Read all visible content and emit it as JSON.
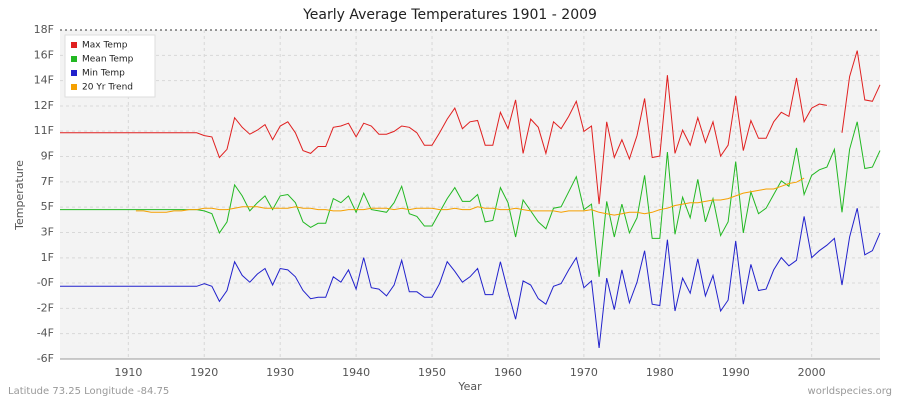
{
  "chart_data": {
    "type": "line",
    "title": "Yearly Average Temperatures 1901 - 2009",
    "x_label": "Year",
    "y_label": "Temperature",
    "footer_left": "Latitude 73.25 Longitude -84.75",
    "footer_right": "worldspecies.org",
    "grid": true,
    "legend_position": "top-left",
    "xlim": [
      1901,
      2009
    ],
    "xticks": [
      1910,
      1920,
      1930,
      1940,
      1950,
      1960,
      1970,
      1980,
      1990,
      2000
    ],
    "ylim": [
      -6,
      18
    ],
    "yticks": [
      {
        "value": -6,
        "label": "-6F"
      },
      {
        "value": -4.15,
        "label": "-4F"
      },
      {
        "value": -2.31,
        "label": "-2F"
      },
      {
        "value": -0.46,
        "label": "-0F"
      },
      {
        "value": 1.38,
        "label": "1F"
      },
      {
        "value": 3.23,
        "label": "3F"
      },
      {
        "value": 5.08,
        "label": "5F"
      },
      {
        "value": 6.92,
        "label": "7F"
      },
      {
        "value": 8.77,
        "label": "9F"
      },
      {
        "value": 10.62,
        "label": "11F"
      },
      {
        "value": 12.46,
        "label": "12F"
      },
      {
        "value": 14.31,
        "label": "14F"
      },
      {
        "value": 16.15,
        "label": "16F"
      },
      {
        "value": 18,
        "label": "18F"
      }
    ],
    "x": [
      1901,
      1902,
      1903,
      1904,
      1905,
      1906,
      1907,
      1908,
      1909,
      1910,
      1911,
      1912,
      1913,
      1914,
      1915,
      1916,
      1917,
      1918,
      1919,
      1920,
      1921,
      1922,
      1923,
      1924,
      1925,
      1926,
      1927,
      1928,
      1929,
      1930,
      1931,
      1932,
      1933,
      1934,
      1935,
      1936,
      1937,
      1938,
      1939,
      1940,
      1941,
      1942,
      1943,
      1944,
      1945,
      1946,
      1947,
      1948,
      1949,
      1950,
      1951,
      1952,
      1953,
      1954,
      1955,
      1956,
      1957,
      1958,
      1959,
      1960,
      1961,
      1962,
      1963,
      1964,
      1965,
      1966,
      1967,
      1968,
      1969,
      1970,
      1971,
      1972,
      1973,
      1974,
      1975,
      1976,
      1977,
      1978,
      1979,
      1980,
      1981,
      1982,
      1983,
      1984,
      1985,
      1986,
      1987,
      1988,
      1989,
      1990,
      1991,
      1992,
      1993,
      1994,
      1995,
      1996,
      1997,
      1998,
      1999,
      2000,
      2001,
      2002,
      2003,
      2004,
      2005,
      2006,
      2007,
      2008,
      2009
    ],
    "series": [
      {
        "name": "Max Temp",
        "color": "#e02020",
        "values": [
          10.5,
          10.5,
          10.5,
          10.5,
          10.5,
          10.5,
          10.5,
          10.5,
          10.5,
          10.5,
          10.5,
          10.5,
          10.5,
          10.5,
          10.5,
          10.5,
          10.5,
          10.5,
          10.5,
          10.3,
          10.2,
          8.7,
          9.3,
          11.6,
          10.9,
          10.4,
          10.7,
          11.1,
          10.0,
          11.0,
          11.3,
          10.5,
          9.2,
          9.0,
          9.5,
          9.5,
          10.9,
          11.0,
          11.2,
          10.2,
          11.2,
          11.0,
          10.4,
          10.4,
          10.6,
          11.0,
          10.9,
          10.5,
          9.6,
          9.6,
          10.5,
          11.5,
          12.3,
          10.8,
          11.3,
          11.4,
          9.6,
          9.6,
          12.0,
          10.8,
          12.9,
          9.0,
          11.5,
          10.9,
          9.0,
          11.3,
          10.8,
          11.7,
          12.8,
          10.6,
          11.0,
          5.3,
          11.3,
          8.7,
          10.0,
          8.6,
          10.3,
          13.0,
          8.7,
          8.8,
          14.7,
          9.0,
          10.7,
          9.6,
          11.6,
          9.8,
          11.3,
          8.8,
          9.6,
          13.2,
          9.2,
          11.4,
          10.1,
          10.1,
          11.3,
          12.0,
          11.7,
          14.5,
          11.3,
          12.3,
          12.6,
          12.5,
          null,
          10.5,
          14.6,
          16.5,
          12.9,
          12.8,
          14.0
        ]
      },
      {
        "name": "Mean Temp",
        "color": "#22b822",
        "values": [
          4.9,
          4.9,
          4.9,
          4.9,
          4.9,
          4.9,
          4.9,
          4.9,
          4.9,
          4.9,
          4.9,
          4.9,
          4.9,
          4.9,
          4.9,
          4.9,
          4.9,
          4.9,
          4.9,
          4.8,
          4.6,
          3.2,
          4.0,
          6.7,
          5.9,
          4.8,
          5.4,
          5.9,
          4.9,
          5.9,
          6.0,
          5.4,
          4.0,
          3.6,
          3.9,
          3.9,
          5.7,
          5.4,
          5.9,
          4.7,
          6.1,
          4.9,
          4.8,
          4.7,
          5.4,
          6.6,
          4.6,
          4.4,
          3.7,
          3.7,
          4.7,
          5.7,
          6.5,
          5.5,
          5.5,
          6.0,
          4.0,
          4.1,
          6.5,
          5.4,
          2.9,
          5.6,
          4.8,
          4.0,
          3.5,
          5.0,
          5.1,
          6.2,
          7.3,
          4.9,
          5.3,
          0.0,
          5.5,
          2.9,
          5.3,
          3.2,
          4.3,
          7.4,
          2.8,
          2.8,
          9.1,
          3.1,
          5.8,
          4.3,
          7.1,
          4.0,
          5.7,
          3.0,
          4.0,
          8.4,
          3.2,
          6.2,
          4.6,
          5.0,
          6.0,
          7.0,
          6.6,
          9.4,
          6.0,
          7.4,
          7.8,
          8.0,
          9.3,
          4.7,
          9.3,
          11.3,
          7.9,
          8.0,
          9.2
        ]
      },
      {
        "name": "Min Temp",
        "color": "#2222cc",
        "values": [
          -0.7,
          -0.7,
          -0.7,
          -0.7,
          -0.7,
          -0.7,
          -0.7,
          -0.7,
          -0.7,
          -0.7,
          -0.7,
          -0.7,
          -0.7,
          -0.7,
          -0.7,
          -0.7,
          -0.7,
          -0.7,
          -0.7,
          -0.5,
          -0.7,
          -1.8,
          -1.0,
          1.1,
          0.1,
          -0.4,
          0.2,
          0.6,
          -0.6,
          0.6,
          0.5,
          0.0,
          -1.0,
          -1.6,
          -1.5,
          -1.5,
          0.0,
          -0.4,
          0.5,
          -0.9,
          1.4,
          -0.8,
          -0.9,
          -1.4,
          -0.6,
          1.2,
          -1.1,
          -1.1,
          -1.5,
          -1.5,
          -0.5,
          1.1,
          0.4,
          -0.4,
          0.0,
          0.6,
          -1.3,
          -1.3,
          1.1,
          -1.1,
          -3.1,
          -0.3,
          -0.6,
          -1.6,
          -2.0,
          -0.7,
          -0.5,
          0.5,
          1.4,
          -0.8,
          -0.3,
          -5.2,
          -0.1,
          -2.4,
          0.5,
          -1.9,
          -0.4,
          1.9,
          -2.0,
          -2.1,
          2.7,
          -2.5,
          -0.1,
          -1.2,
          1.3,
          -1.4,
          0.1,
          -2.5,
          -1.7,
          2.6,
          -2.0,
          0.9,
          -1.0,
          -0.9,
          0.5,
          1.4,
          0.8,
          1.2,
          4.4,
          1.4,
          1.9,
          2.3,
          2.8,
          -0.6,
          2.9,
          5.0,
          1.6,
          1.9,
          3.2
        ]
      },
      {
        "name": "20 Yr Trend",
        "color": "#f5a000",
        "values": [
          null,
          null,
          null,
          null,
          null,
          null,
          null,
          null,
          null,
          null,
          4.8,
          4.8,
          4.7,
          4.7,
          4.7,
          4.8,
          4.8,
          4.9,
          4.9,
          5.0,
          5.0,
          4.9,
          4.9,
          5.0,
          5.1,
          5.1,
          5.1,
          5.0,
          5.0,
          5.0,
          5.0,
          5.1,
          5.0,
          5.0,
          4.9,
          4.9,
          4.8,
          4.8,
          4.9,
          4.9,
          4.9,
          5.0,
          5.0,
          5.0,
          4.9,
          5.0,
          4.9,
          5.0,
          5.0,
          5.0,
          4.9,
          4.9,
          5.0,
          4.9,
          4.9,
          5.1,
          5.0,
          5.0,
          4.9,
          4.9,
          5.0,
          4.9,
          4.8,
          4.8,
          4.8,
          4.8,
          4.7,
          4.8,
          4.8,
          4.8,
          4.9,
          4.7,
          4.6,
          4.5,
          4.6,
          4.7,
          4.7,
          4.6,
          4.7,
          4.9,
          5.0,
          5.2,
          5.3,
          5.4,
          5.4,
          5.5,
          5.6,
          5.6,
          5.7,
          5.9,
          6.1,
          6.2,
          6.3,
          6.4,
          6.4,
          6.6,
          6.8,
          6.9,
          7.2,
          null,
          null,
          null,
          null,
          null,
          null,
          null,
          null,
          null,
          null
        ]
      }
    ]
  }
}
